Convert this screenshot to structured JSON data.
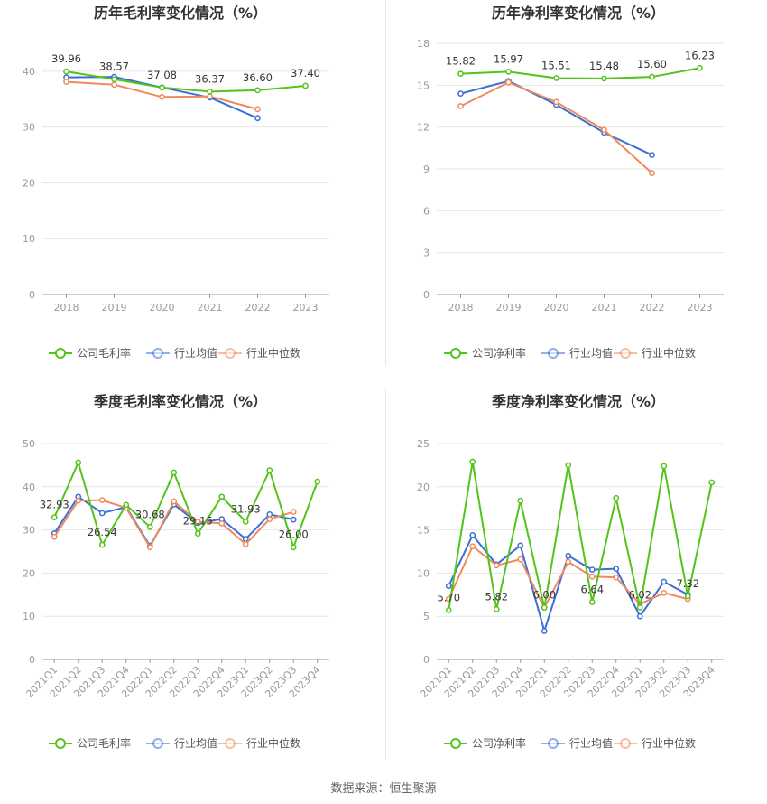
{
  "colors": {
    "company": "#52c41a",
    "avg": "#3a6fd8",
    "median": "#f08a5d",
    "grid": "#e6e6e6",
    "axis": "#999999",
    "tick_text": "#999999",
    "title_text": "#333333",
    "label_text": "#333333"
  },
  "footer": {
    "source": "数据来源：恒生聚源"
  },
  "chart_data": [
    {
      "type": "line",
      "title": "历年毛利率变化情况（%）",
      "categories": [
        "2018",
        "2019",
        "2020",
        "2021",
        "2022",
        "2023"
      ],
      "ylim": [
        0,
        45
      ],
      "yticks": [
        0,
        10,
        20,
        30,
        40
      ],
      "series": [
        {
          "name": "公司毛利率",
          "color_key": "company",
          "values": [
            39.96,
            38.57,
            37.08,
            36.37,
            36.6,
            37.4
          ],
          "labels": [
            "39.96",
            "38.57",
            "37.08",
            "36.37",
            "36.60",
            "37.40"
          ]
        },
        {
          "name": "行业均值",
          "color_key": "avg",
          "values": [
            38.9,
            39.0,
            37.1,
            35.3,
            31.6,
            null
          ]
        },
        {
          "name": "行业中位数",
          "color_key": "median",
          "values": [
            38.1,
            37.6,
            35.4,
            35.5,
            33.2,
            null
          ]
        }
      ]
    },
    {
      "type": "line",
      "title": "历年净利率变化情况（%）",
      "categories": [
        "2018",
        "2019",
        "2020",
        "2021",
        "2022",
        "2023"
      ],
      "ylim": [
        0,
        18
      ],
      "yticks": [
        0,
        3,
        6,
        9,
        12,
        15,
        18
      ],
      "series": [
        {
          "name": "公司净利率",
          "color_key": "company",
          "values": [
            15.82,
            15.97,
            15.51,
            15.48,
            15.6,
            16.23
          ],
          "labels": [
            "15.82",
            "15.97",
            "15.51",
            "15.48",
            "15.60",
            "16.23"
          ]
        },
        {
          "name": "行业均值",
          "color_key": "avg",
          "values": [
            14.4,
            15.3,
            13.6,
            11.6,
            10.0,
            null
          ]
        },
        {
          "name": "行业中位数",
          "color_key": "median",
          "values": [
            13.5,
            15.2,
            13.8,
            11.8,
            8.7,
            null
          ]
        }
      ]
    },
    {
      "type": "line",
      "title": "季度毛利率变化情况（%）",
      "categories": [
        "2021Q1",
        "2021Q2",
        "2021Q3",
        "2021Q4",
        "2022Q1",
        "2022Q2",
        "2022Q3",
        "2022Q4",
        "2023Q1",
        "2023Q2",
        "2023Q3",
        "2023Q4"
      ],
      "ylim": [
        0,
        50
      ],
      "yticks": [
        0,
        10,
        20,
        30,
        40,
        50
      ],
      "series": [
        {
          "name": "公司毛利率",
          "color_key": "company",
          "values": [
            32.93,
            45.6,
            26.54,
            35.8,
            30.68,
            43.3,
            29.15,
            37.7,
            31.93,
            43.8,
            26.0,
            41.2
          ],
          "labels": [
            "32.93",
            "",
            "26.54",
            "",
            "30.68",
            "",
            "29.15",
            "",
            "31.93",
            "",
            "26.00",
            ""
          ]
        },
        {
          "name": "行业均值",
          "color_key": "avg",
          "values": [
            29.2,
            37.7,
            33.9,
            35.3,
            26.3,
            35.9,
            31.6,
            32.5,
            27.9,
            33.6,
            32.4,
            null
          ]
        },
        {
          "name": "行业中位数",
          "color_key": "median",
          "values": [
            28.4,
            36.8,
            36.9,
            35.1,
            26.0,
            36.6,
            31.9,
            31.5,
            26.7,
            32.5,
            34.2,
            null
          ]
        }
      ]
    },
    {
      "type": "line",
      "title": "季度净利率变化情况（%）",
      "categories": [
        "2021Q1",
        "2021Q2",
        "2021Q3",
        "2021Q4",
        "2022Q1",
        "2022Q2",
        "2022Q3",
        "2022Q4",
        "2023Q1",
        "2023Q2",
        "2023Q3",
        "2023Q4"
      ],
      "ylim": [
        0,
        25
      ],
      "yticks": [
        0,
        5,
        10,
        15,
        20,
        25
      ],
      "series": [
        {
          "name": "公司净利率",
          "color_key": "company",
          "values": [
            5.7,
            22.9,
            5.82,
            18.4,
            6.0,
            22.5,
            6.64,
            18.7,
            6.02,
            22.4,
            7.32,
            20.5
          ],
          "labels": [
            "5.70",
            "",
            "5.82",
            "",
            "6.00",
            "",
            "6.64",
            "",
            "6.02",
            "",
            "7.32",
            ""
          ]
        },
        {
          "name": "行业均值",
          "color_key": "avg",
          "values": [
            8.5,
            14.4,
            11.0,
            13.2,
            3.3,
            12.0,
            10.4,
            10.5,
            5.0,
            9.0,
            7.5,
            null
          ]
        },
        {
          "name": "行业中位数",
          "color_key": "median",
          "values": [
            7.0,
            13.1,
            10.9,
            11.6,
            6.0,
            11.3,
            9.6,
            9.5,
            6.4,
            7.7,
            7.0,
            null
          ]
        }
      ]
    }
  ]
}
